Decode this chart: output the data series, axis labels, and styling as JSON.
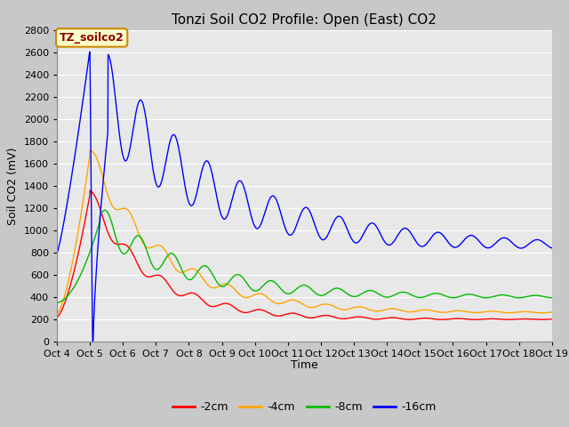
{
  "title": "Tonzi Soil CO2 Profile: Open (East) CO2",
  "ylabel": "Soil CO2 (mV)",
  "xlabel": "Time",
  "ylim": [
    0,
    2800
  ],
  "annotation": "TZ_soilco2",
  "legend_labels": [
    "-2cm",
    "-4cm",
    "-8cm",
    "-16cm"
  ],
  "line_colors": [
    "#ff0000",
    "#ffa500",
    "#00bb00",
    "#0000ff"
  ],
  "xtick_labels": [
    "Oct 4",
    "Oct 5",
    "Oct 6",
    "Oct 7",
    "Oct 8",
    "Oct 9",
    "Oct 10",
    "Oct 11",
    "Oct 12",
    "Oct 13",
    "Oct 14",
    "Oct 15",
    "Oct 16",
    "Oct 17",
    "Oct 18",
    "Oct 19"
  ],
  "title_fontsize": 11,
  "axis_fontsize": 9,
  "tick_fontsize": 8,
  "legend_fontsize": 9,
  "annotation_fontsize": 9,
  "linewidth": 1.0,
  "figure_bg": "#c8c8c8",
  "axes_bg": "#e8e8e8",
  "grid_color": "#ffffff",
  "grid_linewidth": 0.8
}
